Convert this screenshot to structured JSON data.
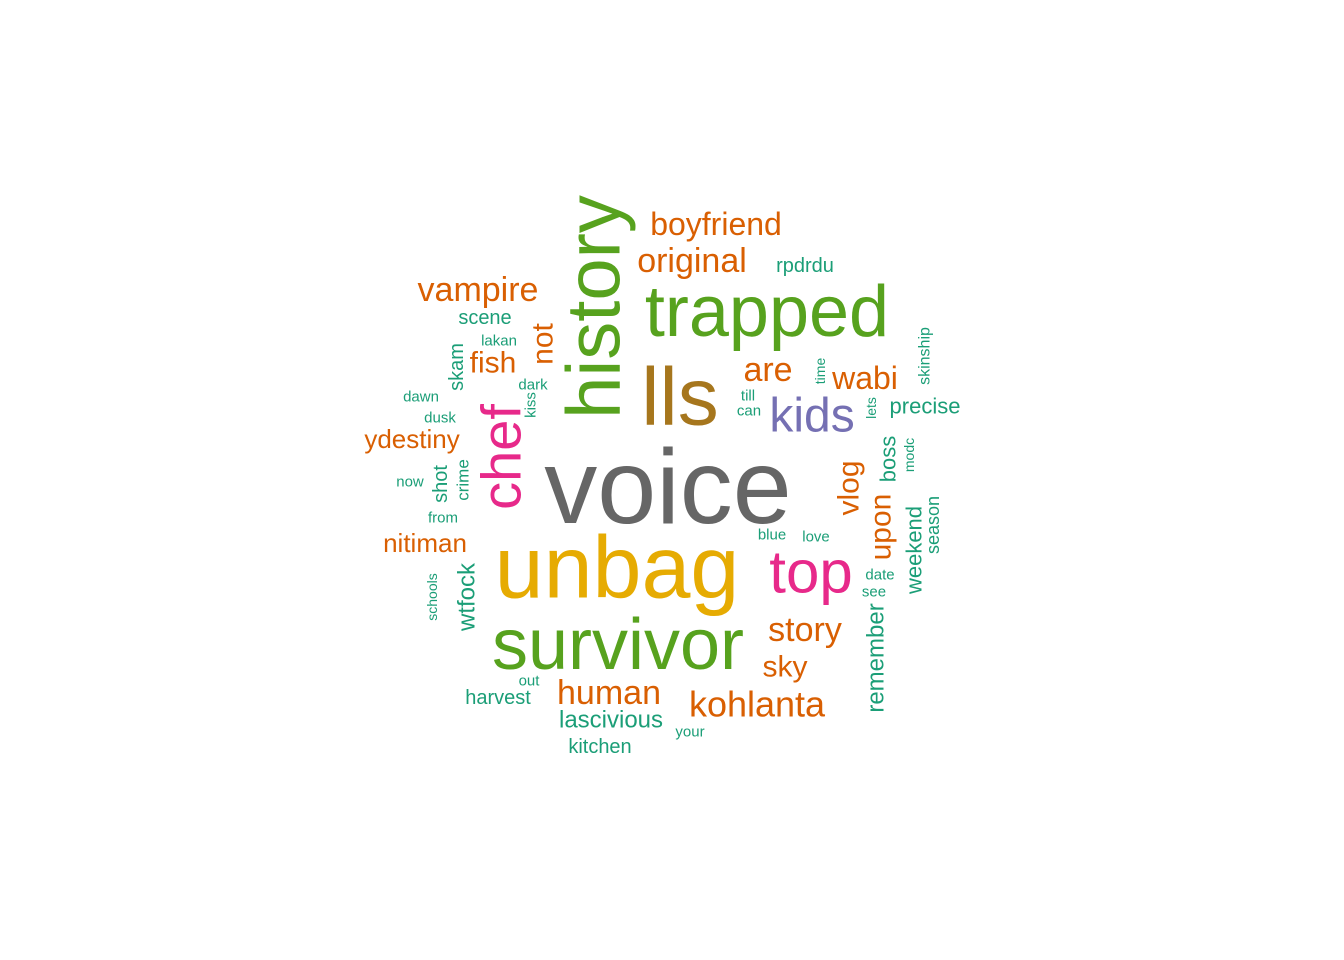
{
  "word_cloud": {
    "palette": {
      "green": "#57a21e",
      "orange": "#d95f02",
      "teal": "#1b9e77",
      "pink": "#e7298a",
      "purple": "#7570b3",
      "gold": "#e6ab02",
      "brown": "#a6761d",
      "gray": "#666666"
    },
    "words": [
      {
        "text": "voice",
        "color": "gray",
        "rotated": false
      },
      {
        "text": "unbag",
        "color": "gold",
        "rotated": false
      },
      {
        "text": "survivor",
        "color": "green",
        "rotated": false
      },
      {
        "text": "lls",
        "color": "brown",
        "rotated": false
      },
      {
        "text": "history",
        "color": "green",
        "rotated": true
      },
      {
        "text": "trapped",
        "color": "green",
        "rotated": false
      },
      {
        "text": "top",
        "color": "pink",
        "rotated": false
      },
      {
        "text": "chef",
        "color": "pink",
        "rotated": true
      },
      {
        "text": "kids",
        "color": "purple",
        "rotated": false
      },
      {
        "text": "boyfriend",
        "color": "orange",
        "rotated": false
      },
      {
        "text": "original",
        "color": "orange",
        "rotated": false
      },
      {
        "text": "vampire",
        "color": "orange",
        "rotated": false
      },
      {
        "text": "kohlanta",
        "color": "orange",
        "rotated": false
      },
      {
        "text": "human",
        "color": "orange",
        "rotated": false
      },
      {
        "text": "story",
        "color": "orange",
        "rotated": false
      },
      {
        "text": "wabi",
        "color": "orange",
        "rotated": false
      },
      {
        "text": "are",
        "color": "orange",
        "rotated": false
      },
      {
        "text": "sky",
        "color": "orange",
        "rotated": false
      },
      {
        "text": "fish",
        "color": "orange",
        "rotated": false
      },
      {
        "text": "not",
        "color": "orange",
        "rotated": true
      },
      {
        "text": "vlog",
        "color": "orange",
        "rotated": true
      },
      {
        "text": "upon",
        "color": "orange",
        "rotated": true
      },
      {
        "text": "ydestiny",
        "color": "orange",
        "rotated": false
      },
      {
        "text": "nitiman",
        "color": "orange",
        "rotated": false
      },
      {
        "text": "boss",
        "color": "teal",
        "rotated": true
      },
      {
        "text": "remember",
        "color": "teal",
        "rotated": true
      },
      {
        "text": "weekend",
        "color": "teal",
        "rotated": true
      },
      {
        "text": "wtfock",
        "color": "teal",
        "rotated": true
      },
      {
        "text": "lascivious",
        "color": "teal",
        "rotated": false
      },
      {
        "text": "precise",
        "color": "teal",
        "rotated": false
      },
      {
        "text": "rpdrdu",
        "color": "teal",
        "rotated": false
      },
      {
        "text": "scene",
        "color": "teal",
        "rotated": false
      },
      {
        "text": "harvest",
        "color": "teal",
        "rotated": false
      },
      {
        "text": "kitchen",
        "color": "teal",
        "rotated": false
      },
      {
        "text": "skam",
        "color": "teal",
        "rotated": true
      },
      {
        "text": "shot",
        "color": "teal",
        "rotated": true
      },
      {
        "text": "season",
        "color": "teal",
        "rotated": true
      },
      {
        "text": "crime",
        "color": "teal",
        "rotated": true
      },
      {
        "text": "skinship",
        "color": "teal",
        "rotated": true
      },
      {
        "text": "lakan",
        "color": "teal",
        "rotated": false
      },
      {
        "text": "dark",
        "color": "teal",
        "rotated": false
      },
      {
        "text": "dawn",
        "color": "teal",
        "rotated": false
      },
      {
        "text": "dusk",
        "color": "teal",
        "rotated": false
      },
      {
        "text": "kiss",
        "color": "teal",
        "rotated": true
      },
      {
        "text": "now",
        "color": "teal",
        "rotated": false
      },
      {
        "text": "from",
        "color": "teal",
        "rotated": false
      },
      {
        "text": "schools",
        "color": "teal",
        "rotated": true
      },
      {
        "text": "till",
        "color": "teal",
        "rotated": false
      },
      {
        "text": "can",
        "color": "teal",
        "rotated": false
      },
      {
        "text": "time",
        "color": "teal",
        "rotated": true
      },
      {
        "text": "lets",
        "color": "teal",
        "rotated": true
      },
      {
        "text": "modc",
        "color": "teal",
        "rotated": true
      },
      {
        "text": "blue",
        "color": "teal",
        "rotated": false
      },
      {
        "text": "love",
        "color": "teal",
        "rotated": false
      },
      {
        "text": "date",
        "color": "teal",
        "rotated": false
      },
      {
        "text": "see",
        "color": "teal",
        "rotated": false
      },
      {
        "text": "out",
        "color": "teal",
        "rotated": false
      },
      {
        "text": "your",
        "color": "teal",
        "rotated": false
      }
    ]
  }
}
